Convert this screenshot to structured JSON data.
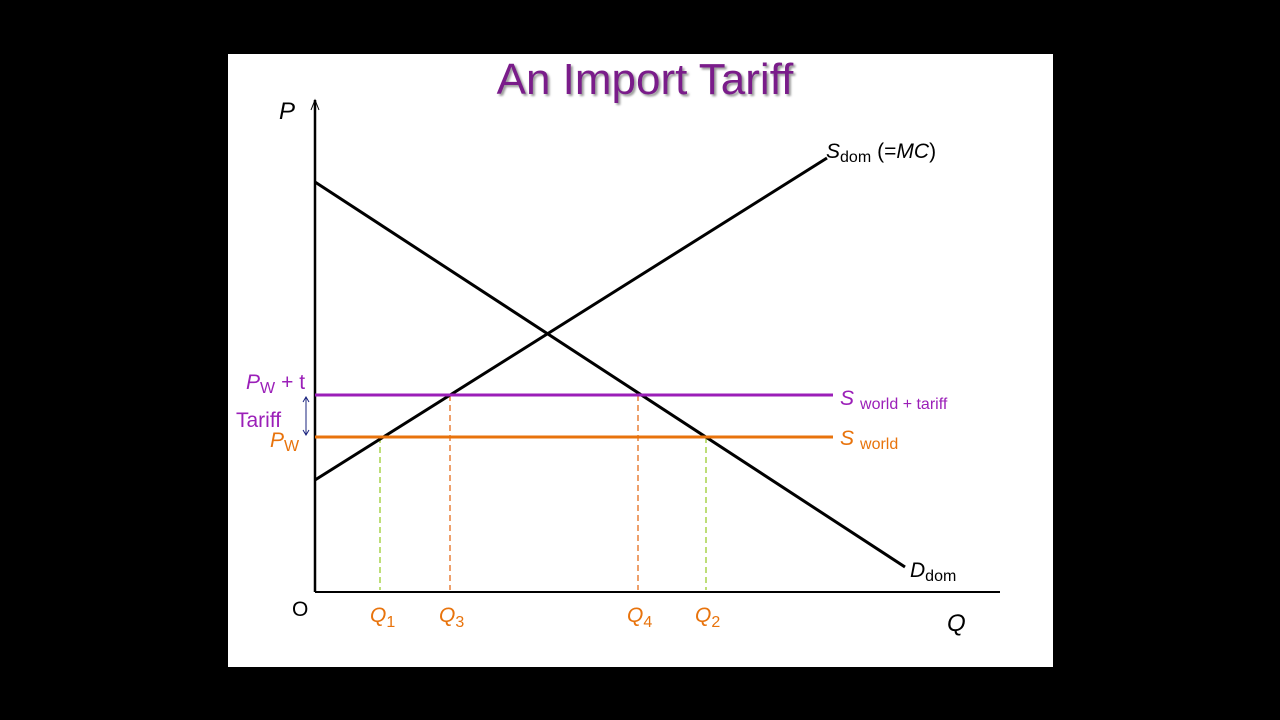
{
  "title": "An Import Tariff",
  "axes": {
    "y_label": "P",
    "x_label": "Q",
    "origin": "O"
  },
  "curves": {
    "supply": {
      "symbol": "S",
      "subscript": "dom",
      "note_open": "(=",
      "note_italic": "MC",
      "note_close": ")"
    },
    "demand": {
      "symbol": "D",
      "subscript": "dom"
    }
  },
  "price_lines": [
    {
      "label": "S",
      "label_sub": "world + tariff",
      "axis_symbol": "P",
      "axis_sub": "W",
      "axis_suffix": "+ t"
    },
    {
      "label": "S",
      "label_sub": "world",
      "axis_symbol": "P",
      "axis_sub": "W"
    }
  ],
  "tariff_label": "Tariff",
  "quantities": [
    {
      "symbol": "Q",
      "sub": "1"
    },
    {
      "symbol": "Q",
      "sub": "3"
    },
    {
      "symbol": "Q",
      "sub": "4"
    },
    {
      "symbol": "Q",
      "sub": "2"
    }
  ]
}
